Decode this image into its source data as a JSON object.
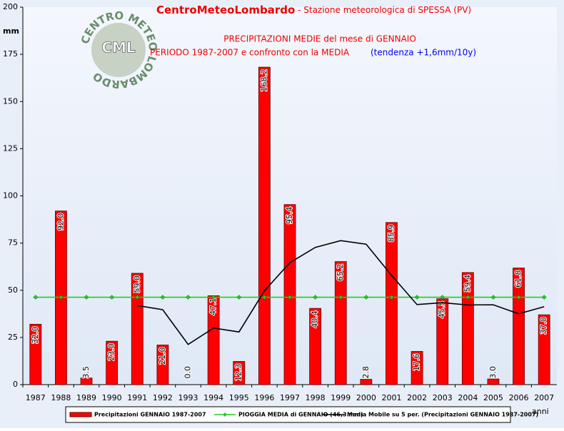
{
  "chart_data": {
    "type": "bar",
    "title": "CentroMeteoLombardo",
    "title_suffix": " - Stazione meteorologica di SPESSA (PV)",
    "subtitle": "PRECIPITAZIONI MEDIE del mese di GENNAIO",
    "subtitle2": "PERIODO 1987-2007 e confronto con la MEDIA",
    "trend": "(tendenza +1,6mm/10y)",
    "logo": {
      "ring": "CENTRO METEO LOMBARDO",
      "abbr": "CML"
    },
    "y_label": "mm",
    "x_label": "anni",
    "categories": [
      "1987",
      "1988",
      "1989",
      "1990",
      "1991",
      "1992",
      "1993",
      "1994",
      "1995",
      "1996",
      "1997",
      "1998",
      "1999",
      "2000",
      "2001",
      "2002",
      "2003",
      "2004",
      "2005",
      "2006",
      "2007"
    ],
    "series": [
      {
        "name": "Precipitazioni GENNAIO 1987-2007",
        "type": "bar",
        "color": "#ff0000",
        "values": [
          32.0,
          92.0,
          3.5,
          23.0,
          59.0,
          21.0,
          0.0,
          47.1,
          12.3,
          168.2,
          95.4,
          40.4,
          65.2,
          2.8,
          85.9,
          17.6,
          45.5,
          59.4,
          3.0,
          61.8,
          37.0
        ],
        "value_labels": [
          "32.0",
          "92.0",
          "3.5",
          "23.0",
          "59.0",
          "21.0",
          "0.0",
          "47.1",
          "12.3",
          "168.2",
          "95.4",
          "40.4",
          "65.2",
          "2.8",
          "85.9",
          "17.6",
          "45.5",
          "59.4",
          "3.0",
          "61.8",
          "37.0"
        ]
      },
      {
        "name": "PIOGGIA MEDIA di GENNAIO (46,3 mm)",
        "type": "line",
        "marker": "diamond",
        "color": "#22cc22",
        "values": [
          46.3,
          46.3,
          46.3,
          46.3,
          46.3,
          46.3,
          46.3,
          46.3,
          46.3,
          46.3,
          46.3,
          46.3,
          46.3,
          46.3,
          46.3,
          46.3,
          46.3,
          46.3,
          46.3,
          46.3,
          46.3
        ]
      },
      {
        "name": "Media Mobile su 5 per. (Precipitazioni GENNAIO 1987-2007)",
        "type": "line",
        "color": "#000000",
        "values": [
          null,
          null,
          null,
          null,
          41.9,
          39.7,
          21.3,
          30.0,
          27.9,
          49.7,
          64.6,
          72.7,
          76.3,
          74.4,
          57.9,
          42.4,
          43.4,
          42.2,
          42.3,
          37.5,
          41.3
        ]
      }
    ],
    "ylim": [
      0,
      200
    ],
    "yticks": [
      0,
      25,
      50,
      75,
      100,
      125,
      150,
      175,
      200
    ],
    "grid": false
  }
}
